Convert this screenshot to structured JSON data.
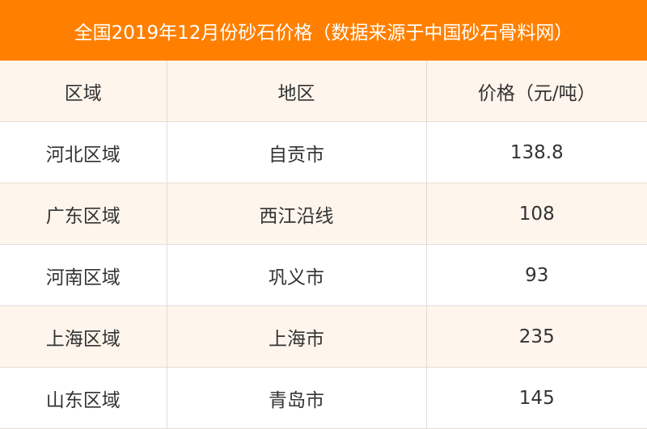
{
  "title": "全国2019年12月份砂石价格（数据来源于中国砂石骨料网）",
  "colors": {
    "header_bg": "#FF8000",
    "alt_row_bg": "#FEF5EC"
  },
  "table": {
    "headers": [
      "区域",
      "地区",
      "价格（元/吨）"
    ],
    "rows": [
      [
        "河北区域",
        "自贡市",
        "138.8"
      ],
      [
        "广东区域",
        "西江沿线",
        "108"
      ],
      [
        "河南区域",
        "巩义市",
        "93"
      ],
      [
        "上海区域",
        "上海市",
        "235"
      ],
      [
        "山东区域",
        "青岛市",
        "145"
      ]
    ]
  }
}
